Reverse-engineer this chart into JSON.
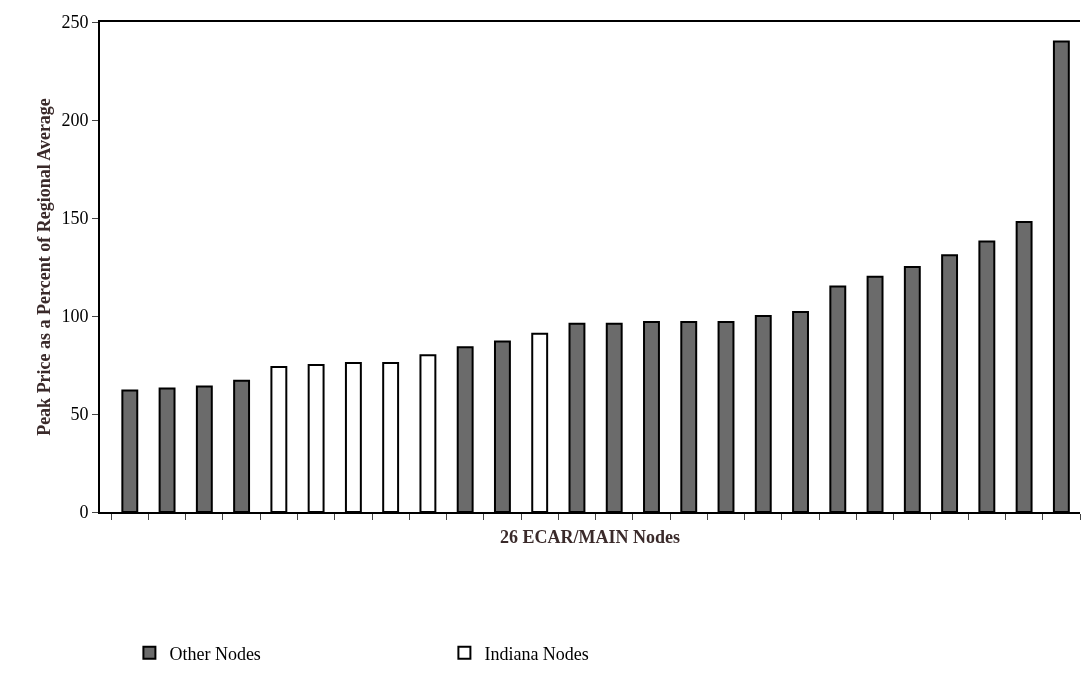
{
  "chart_data": {
    "type": "bar",
    "xlabel": "26 ECAR/MAIN Nodes",
    "ylabel": "Peak Price as a Percent of Regional Average",
    "categories": [
      null,
      null,
      null,
      null,
      null,
      null,
      null,
      null,
      null,
      null,
      null,
      null,
      null,
      null,
      null,
      null,
      null,
      null,
      null,
      null,
      null,
      null,
      null,
      null,
      null,
      null
    ],
    "series": [
      {
        "name": "Other Nodes",
        "color": "#6b6b6b",
        "values": [
          62,
          63,
          64,
          67,
          null,
          null,
          null,
          null,
          null,
          84,
          87,
          null,
          96,
          96,
          97,
          97,
          97,
          100,
          102,
          115,
          120,
          125,
          131,
          138,
          148,
          240
        ]
      },
      {
        "name": "Indiana Nodes",
        "color": "#ffffff",
        "values": [
          null,
          null,
          null,
          null,
          74,
          75,
          76,
          76,
          80,
          null,
          null,
          91,
          null,
          null,
          null,
          null,
          null,
          null,
          null,
          null,
          null,
          null,
          null,
          null,
          null,
          null
        ]
      }
    ],
    "ylim": [
      0,
      250
    ],
    "yticks": [
      0,
      50,
      100,
      150,
      200,
      250
    ],
    "legend": "bottom left"
  }
}
